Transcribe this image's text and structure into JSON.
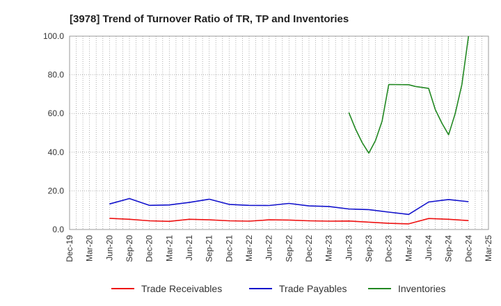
{
  "chart_data": {
    "type": "line",
    "title": "[3978]  Trend of Turnover Ratio of TR, TP and Inventories",
    "xlabel": "",
    "ylabel": "",
    "ylim": [
      0,
      100
    ],
    "y_ticks": [
      "0.0",
      "20.0",
      "40.0",
      "60.0",
      "80.0",
      "100.0"
    ],
    "x_tick_labels": [
      "Dec-19",
      "Mar-20",
      "Jun-20",
      "Sep-20",
      "Dec-20",
      "Mar-21",
      "Jun-21",
      "Sep-21",
      "Dec-21",
      "Mar-22",
      "Jun-22",
      "Sep-22",
      "Dec-22",
      "Mar-23",
      "Jun-23",
      "Sep-23",
      "Dec-23",
      "Mar-24",
      "Jun-24",
      "Sep-24",
      "Dec-24",
      "Mar-25"
    ],
    "grid": true,
    "legend_position": "bottom",
    "series": [
      {
        "name": "Trade Receivables",
        "color": "#ee1111",
        "points": [
          [
            "Jun-20",
            5.8
          ],
          [
            "Sep-20",
            5.3
          ],
          [
            "Dec-20",
            4.5
          ],
          [
            "Mar-21",
            4.2
          ],
          [
            "Jun-21",
            5.3
          ],
          [
            "Sep-21",
            5.0
          ],
          [
            "Dec-21",
            4.5
          ],
          [
            "Mar-22",
            4.3
          ],
          [
            "Jun-22",
            5.0
          ],
          [
            "Sep-22",
            4.9
          ],
          [
            "Dec-22",
            4.5
          ],
          [
            "Mar-23",
            4.3
          ],
          [
            "Jun-23",
            4.4
          ],
          [
            "Sep-23",
            3.8
          ],
          [
            "Dec-23",
            3.2
          ],
          [
            "Mar-24",
            2.9
          ],
          [
            "Jun-24",
            5.7
          ],
          [
            "Sep-24",
            5.3
          ],
          [
            "Dec-24",
            4.6
          ]
        ]
      },
      {
        "name": "Trade Payables",
        "color": "#1111cc",
        "points": [
          [
            "Jun-20",
            13.2
          ],
          [
            "Sep-20",
            16.0
          ],
          [
            "Dec-20",
            12.5
          ],
          [
            "Mar-21",
            12.7
          ],
          [
            "Jun-21",
            14.0
          ],
          [
            "Sep-21",
            15.7
          ],
          [
            "Dec-21",
            13.0
          ],
          [
            "Mar-22",
            12.5
          ],
          [
            "Jun-22",
            12.4
          ],
          [
            "Sep-22",
            13.5
          ],
          [
            "Dec-22",
            12.2
          ],
          [
            "Mar-23",
            11.9
          ],
          [
            "Jun-23",
            10.6
          ],
          [
            "Sep-23",
            10.3
          ],
          [
            "Dec-23",
            9.0
          ],
          [
            "Mar-24",
            7.8
          ],
          [
            "Jun-24",
            14.2
          ],
          [
            "Sep-24",
            15.5
          ],
          [
            "Dec-24",
            14.4
          ]
        ]
      },
      {
        "name": "Inventories",
        "color": "#228822",
        "points": [
          [
            "Jun-23",
            60.5
          ],
          [
            "Jul-23",
            52.0
          ],
          [
            "Aug-23",
            45.0
          ],
          [
            "Sep-23",
            39.5
          ],
          [
            "Oct-23",
            46.0
          ],
          [
            "Nov-23",
            56.0
          ],
          [
            "Dec-23",
            75.0
          ],
          [
            "Mar-24",
            74.9
          ],
          [
            "Apr-24",
            74.0
          ],
          [
            "Jun-24",
            73.0
          ],
          [
            "Jul-24",
            62.0
          ],
          [
            "Aug-24",
            55.0
          ],
          [
            "Sep-24",
            49.0
          ],
          [
            "Oct-24",
            60.0
          ],
          [
            "Nov-24",
            75.0
          ],
          [
            "Dec-24",
            100.0
          ]
        ]
      }
    ]
  }
}
